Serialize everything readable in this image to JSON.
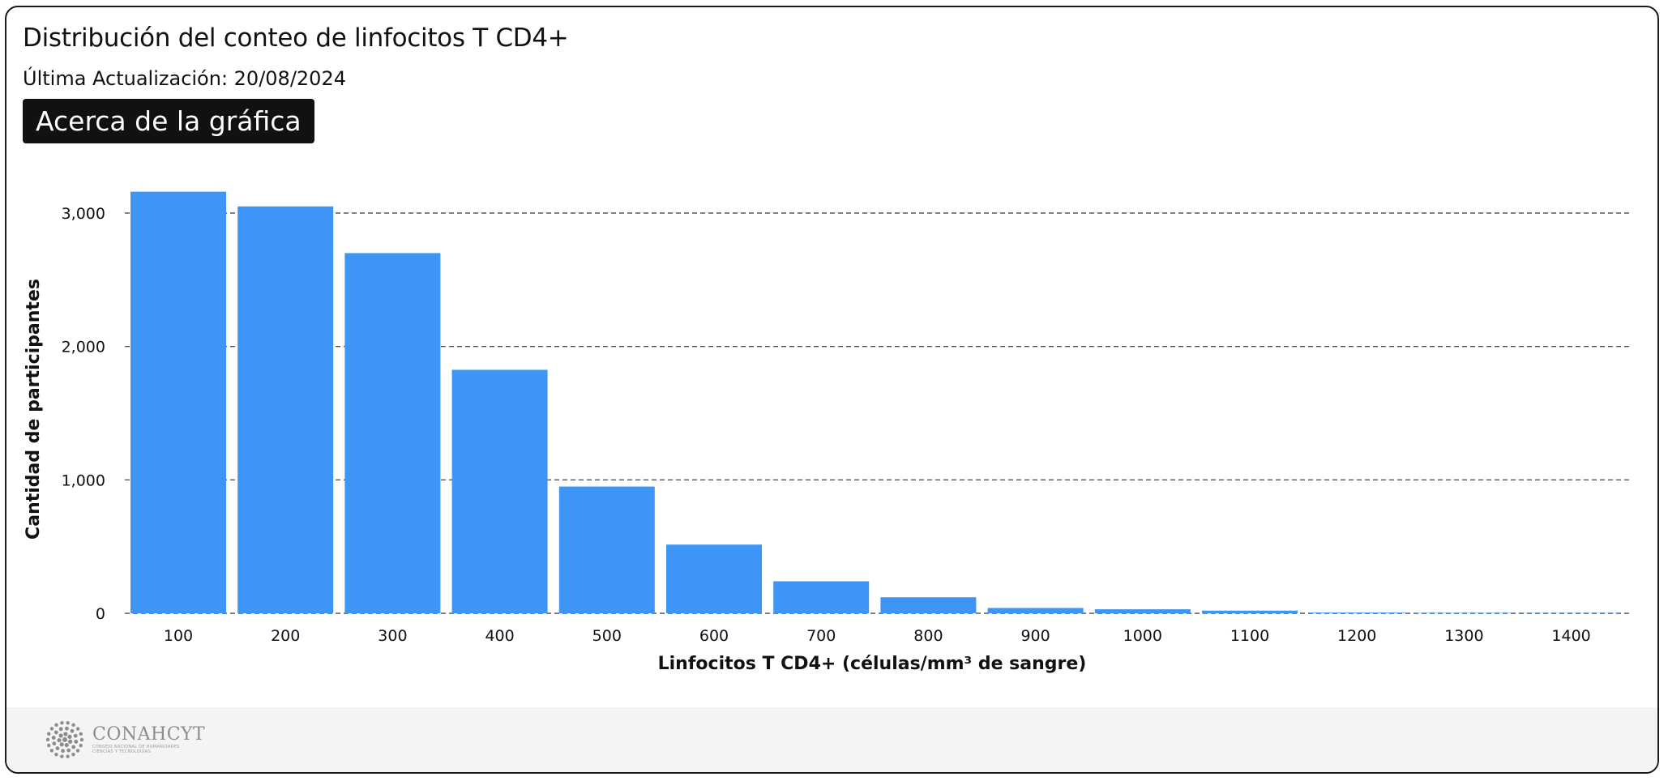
{
  "header": {
    "title": "Distribución del conteo de linfocitos T CD4+",
    "updated": "Última Actualización: 20/08/2024",
    "about_button": "Acerca de la gráfica"
  },
  "footer": {
    "logo_name": "CONAHCYT",
    "logo_sub_line1": "CONSEJO NACIONAL DE HUMANIDADES",
    "logo_sub_line2": "CIENCIAS Y TECNOLOGÍAS"
  },
  "colors": {
    "bar": "#3d96f5",
    "grid": "#555555",
    "text": "#111111",
    "button_bg": "#111111",
    "footer_bg": "#f4f4f4"
  },
  "chart_data": {
    "type": "bar",
    "categories": [
      "100",
      "200",
      "300",
      "400",
      "500",
      "600",
      "700",
      "800",
      "900",
      "1000",
      "1100",
      "1200",
      "1300",
      "1400"
    ],
    "values": [
      3160,
      3050,
      2700,
      1825,
      950,
      515,
      240,
      120,
      40,
      30,
      20,
      5,
      3,
      2
    ],
    "xlabel": "Linfocitos T CD4+ (células/mm³ de sangre)",
    "ylabel": "Cantidad de participantes",
    "yticks": [
      "0",
      "1,000",
      "2,000",
      "3,000"
    ],
    "ytick_values": [
      0,
      1000,
      2000,
      3000
    ],
    "ylim": [
      0,
      3300
    ],
    "grid": true,
    "grid_style": "dashed"
  }
}
